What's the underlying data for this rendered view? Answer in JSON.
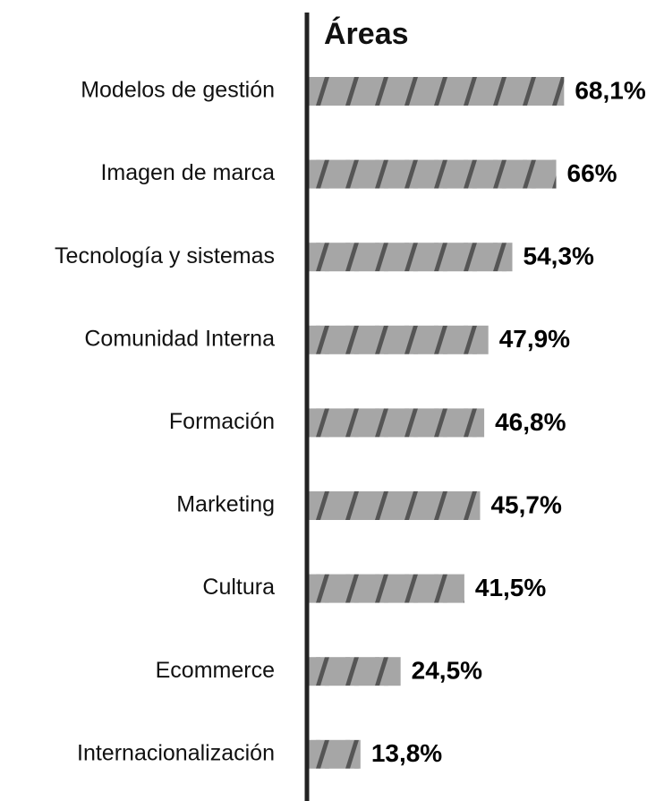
{
  "chart_data": {
    "type": "bar",
    "orientation": "horizontal",
    "title": "Áreas",
    "categories": [
      "Modelos de gestión",
      "Imagen de marca",
      "Tecnología y sistemas",
      "Comunidad Interna",
      "Formación",
      "Marketing",
      "Cultura",
      "Ecommerce",
      "Internacionalización"
    ],
    "values": [
      68.1,
      66,
      54.3,
      47.9,
      46.8,
      45.7,
      41.5,
      24.5,
      13.8
    ],
    "value_labels": [
      "68,1%",
      "66%",
      "54,3%",
      "47,9%",
      "46,8%",
      "45,7%",
      "41,5%",
      "24,5%",
      "13,8%"
    ],
    "color": "#a6a6a6",
    "hatch_color": "#555555"
  }
}
